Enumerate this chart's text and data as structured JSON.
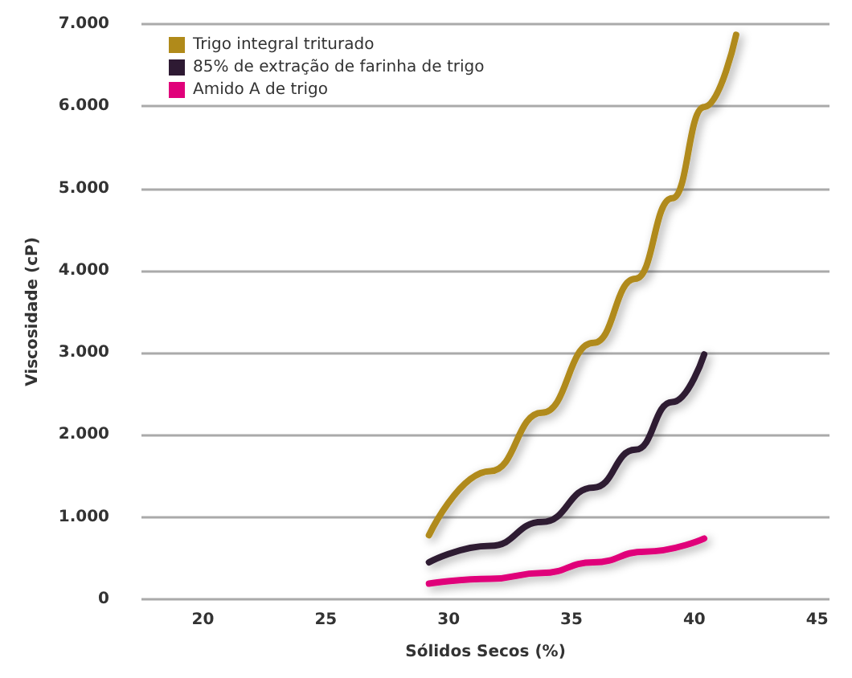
{
  "chart_data": {
    "type": "line",
    "xlabel": "Sólidos Secos (%)",
    "ylabel": "Viscosidade (cP)",
    "xlim": [
      17.5,
      45.5
    ],
    "xticks": [
      20,
      25,
      30,
      35,
      40,
      45
    ],
    "ylim": [
      0,
      7000
    ],
    "yticks": [
      {
        "value": 0,
        "label": "0"
      },
      {
        "value": 1000,
        "label": "1.000"
      },
      {
        "value": 2000,
        "label": "2.000"
      },
      {
        "value": 3000,
        "label": "3.000"
      },
      {
        "value": 4000,
        "label": "4.000"
      },
      {
        "value": 5000,
        "label": "5.000"
      },
      {
        "value": 6000,
        "label": "6.000"
      },
      {
        "value": 7000,
        "label": "7.000"
      }
    ],
    "grid": "y",
    "legend": "top left",
    "marker": "none",
    "line_style": "solid",
    "series": [
      {
        "name": "Trigo integral triturado",
        "color": "#b08a1a",
        "x": [
          29.2,
          31.7,
          33.8,
          35.9,
          37.6,
          39.1,
          40.4,
          41.7
        ],
        "values": [
          780,
          1560,
          2270,
          3120,
          3900,
          4880,
          5990,
          6870
        ]
      },
      {
        "name": "85% de extração de farinha de trigo",
        "color": "#2e1a33",
        "x": [
          29.2,
          31.7,
          33.8,
          35.9,
          37.6,
          39.1,
          40.4
        ],
        "values": [
          450,
          650,
          940,
          1360,
          1820,
          2400,
          2980
        ]
      },
      {
        "name": "Amido A de trigo",
        "color": "#e0007a",
        "x": [
          29.2,
          31.7,
          33.8,
          35.9,
          38.0,
          40.4
        ],
        "values": [
          190,
          250,
          320,
          450,
          580,
          740
        ]
      }
    ]
  }
}
